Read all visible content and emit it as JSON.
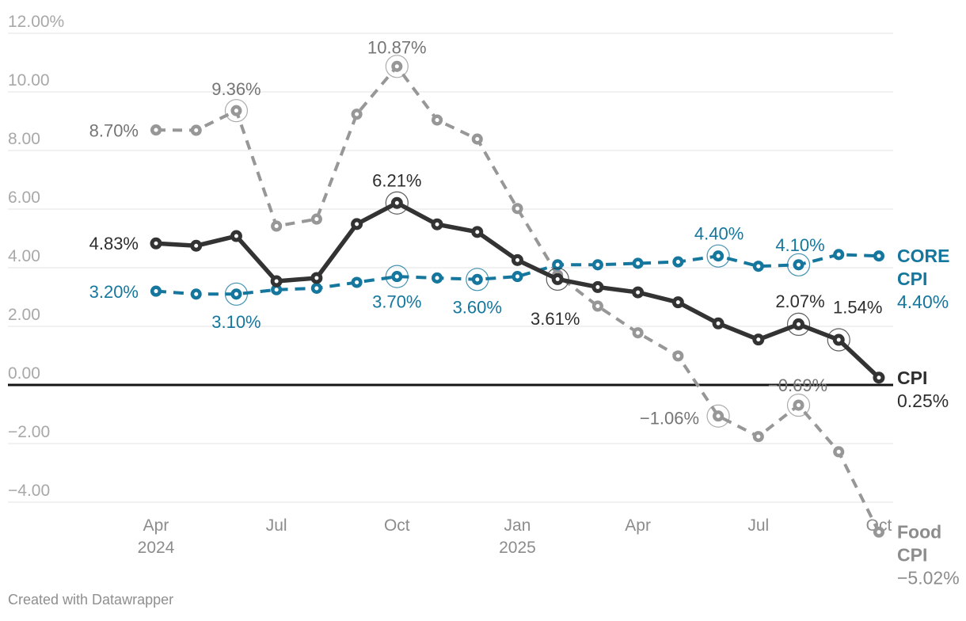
{
  "footer": {
    "attribution": "Created with Datawrapper"
  },
  "chart_data": {
    "type": "line",
    "title": "",
    "categories": [
      "Apr 2024",
      "May 2024",
      "Jun 2024",
      "Jul 2024",
      "Aug 2024",
      "Sep 2024",
      "Oct 2024",
      "Nov 2024",
      "Dec 2024",
      "Jan 2025",
      "Feb 2025",
      "Mar 2025",
      "Apr 2025",
      "May 2025",
      "Jun 2025",
      "Jul 2025",
      "Aug 2025",
      "Sep 2025",
      "Oct 2025"
    ],
    "colors": {
      "grid": "#e3e3e3",
      "zero_line": "#141414",
      "y_axis_text": "#a8a8a8",
      "x_axis_text": "#8c8c8c"
    },
    "y_axis": {
      "ylim": [
        -5.5,
        12
      ],
      "grid": true,
      "ticks": [
        {
          "value": 12,
          "label": "12.00%"
        },
        {
          "value": 10,
          "label": "10.00"
        },
        {
          "value": 8,
          "label": "8.00"
        },
        {
          "value": 6,
          "label": "6.00"
        },
        {
          "value": 4,
          "label": "4.00"
        },
        {
          "value": 2,
          "label": "2.00"
        },
        {
          "value": 0,
          "label": "0.00"
        },
        {
          "value": -2,
          "label": "−2.00"
        },
        {
          "value": -4,
          "label": "−4.00"
        }
      ]
    },
    "x_axis": {
      "tick_labels": [
        {
          "index": 0,
          "lines": [
            "Apr",
            "2024"
          ]
        },
        {
          "index": 3,
          "lines": [
            "Jul"
          ]
        },
        {
          "index": 6,
          "lines": [
            "Oct"
          ]
        },
        {
          "index": 9,
          "lines": [
            "Jan",
            "2025"
          ]
        },
        {
          "index": 12,
          "lines": [
            "Apr"
          ]
        },
        {
          "index": 15,
          "lines": [
            "Jul"
          ]
        },
        {
          "index": 18,
          "lines": [
            "Oct"
          ]
        }
      ]
    },
    "series": [
      {
        "id": "food-cpi",
        "name": "Food CPI",
        "color": "#979797",
        "label_color": "#757575",
        "end_color": "#8c8c8c",
        "dash": "12 9",
        "values": [
          8.7,
          8.69,
          9.36,
          5.42,
          5.66,
          9.24,
          10.87,
          9.04,
          8.39,
          6.02,
          3.75,
          2.69,
          1.78,
          0.99,
          -1.06,
          -1.76,
          -0.69,
          -2.28,
          -5.02
        ],
        "highlights": [
          2,
          6,
          14,
          16
        ],
        "point_labels": [
          {
            "i": 0,
            "text": "8.70%",
            "anchor": "end",
            "dx": -22,
            "dy": 1
          },
          {
            "i": 2,
            "text": "9.36%",
            "anchor": "middle",
            "dx": 0,
            "dy": -27
          },
          {
            "i": 6,
            "text": "10.87%",
            "anchor": "middle",
            "dx": 0,
            "dy": -24
          },
          {
            "i": 14,
            "text": "−1.06%",
            "anchor": "end",
            "dx": -24,
            "dy": 3
          },
          {
            "i": 16,
            "text": "−0.69%",
            "anchor": "middle",
            "dx": -1,
            "dy": -25
          }
        ],
        "end_label": {
          "bold_lines": [
            "Food",
            "CPI"
          ],
          "value": "−5.02%"
        }
      },
      {
        "id": "core-cpi",
        "name": "CORE CPI",
        "color": "#15779e",
        "label_color": "#15779e",
        "end_color": "#15779e",
        "dash": "13 9",
        "values": [
          3.2,
          3.1,
          3.1,
          3.25,
          3.3,
          3.5,
          3.7,
          3.65,
          3.6,
          3.7,
          4.1,
          4.1,
          4.15,
          4.2,
          4.4,
          4.05,
          4.1,
          4.45,
          4.4
        ],
        "highlights": [
          2,
          6,
          8,
          14,
          16
        ],
        "point_labels": [
          {
            "i": 0,
            "text": "3.20%",
            "anchor": "end",
            "dx": -22,
            "dy": 1
          },
          {
            "i": 2,
            "text": "3.10%",
            "anchor": "middle",
            "dx": 0,
            "dy": 35
          },
          {
            "i": 6,
            "text": "3.70%",
            "anchor": "middle",
            "dx": 0,
            "dy": 32
          },
          {
            "i": 8,
            "text": "3.60%",
            "anchor": "middle",
            "dx": 0,
            "dy": 35
          },
          {
            "i": 14,
            "text": "4.40%",
            "anchor": "middle",
            "dx": 1,
            "dy": -28
          },
          {
            "i": 16,
            "text": "4.10%",
            "anchor": "middle",
            "dx": 2,
            "dy": -25
          }
        ],
        "end_label": {
          "bold_lines": [
            "CORE",
            "CPI"
          ],
          "value": "4.40%"
        }
      },
      {
        "id": "cpi",
        "name": "CPI",
        "color": "#333333",
        "label_color": "#2e2e2e",
        "end_color": "#2e2e2e",
        "dash": null,
        "values": [
          4.83,
          4.75,
          5.08,
          3.54,
          3.65,
          5.49,
          6.21,
          5.48,
          5.22,
          4.26,
          3.61,
          3.34,
          3.16,
          2.82,
          2.1,
          1.55,
          2.07,
          1.54,
          0.25
        ],
        "highlights": [
          6,
          10,
          16,
          17
        ],
        "point_labels": [
          {
            "i": 0,
            "text": "4.83%",
            "anchor": "end",
            "dx": -22,
            "dy": 0
          },
          {
            "i": 6,
            "text": "6.21%",
            "anchor": "middle",
            "dx": 0,
            "dy": -28
          },
          {
            "i": 10,
            "text": "3.61%",
            "anchor": "middle",
            "dx": -3,
            "dy": 50
          },
          {
            "i": 16,
            "text": "2.07%",
            "anchor": "middle",
            "dx": 2,
            "dy": -29
          },
          {
            "i": 17,
            "text": "1.54%",
            "anchor": "middle",
            "dx": 24,
            "dy": -41
          }
        ],
        "end_label": {
          "bold_lines": [
            "CPI"
          ],
          "value": "0.25%"
        }
      }
    ]
  }
}
